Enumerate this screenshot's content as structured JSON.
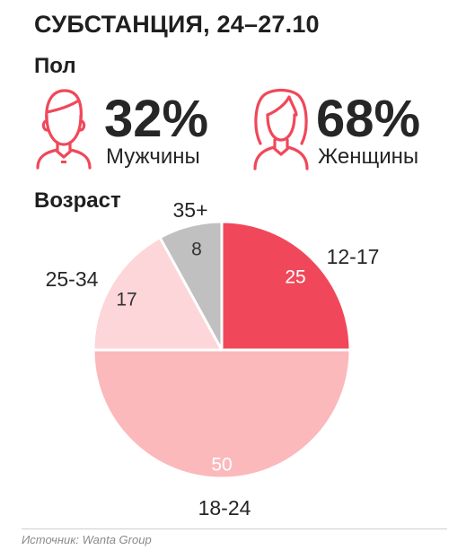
{
  "title": "СУБСТАНЦИЯ, 24–27.10",
  "gender": {
    "label": "Пол",
    "male": {
      "percent": "32%",
      "name": "Мужчины"
    },
    "female": {
      "percent": "68%",
      "name": "Женщины"
    }
  },
  "age": {
    "label": "Возраст"
  },
  "colors": {
    "accent": "#f0485a",
    "slice_12_17": "#f0485a",
    "slice_18_24": "#fbb9bb",
    "slice_25_34": "#fcd6d8",
    "slice_35_plus": "#c0c0c0"
  },
  "chart_data": {
    "type": "pie",
    "title": "Возраст",
    "slices": [
      {
        "label": "12-17",
        "value": 25,
        "value_label": "25",
        "color": "#f0485a",
        "value_color": "#ffffff"
      },
      {
        "label": "18-24",
        "value": 50,
        "value_label": "50",
        "color": "#fbb9bb",
        "value_color": "#ffffff"
      },
      {
        "label": "25-34",
        "value": 17,
        "value_label": "17",
        "color": "#fcd6d8",
        "value_color": "#333333"
      },
      {
        "label": "35+",
        "value": 8,
        "value_label": "8",
        "color": "#c0c0c0",
        "value_color": "#333333"
      }
    ]
  },
  "source": "Источник: Wanta Group"
}
